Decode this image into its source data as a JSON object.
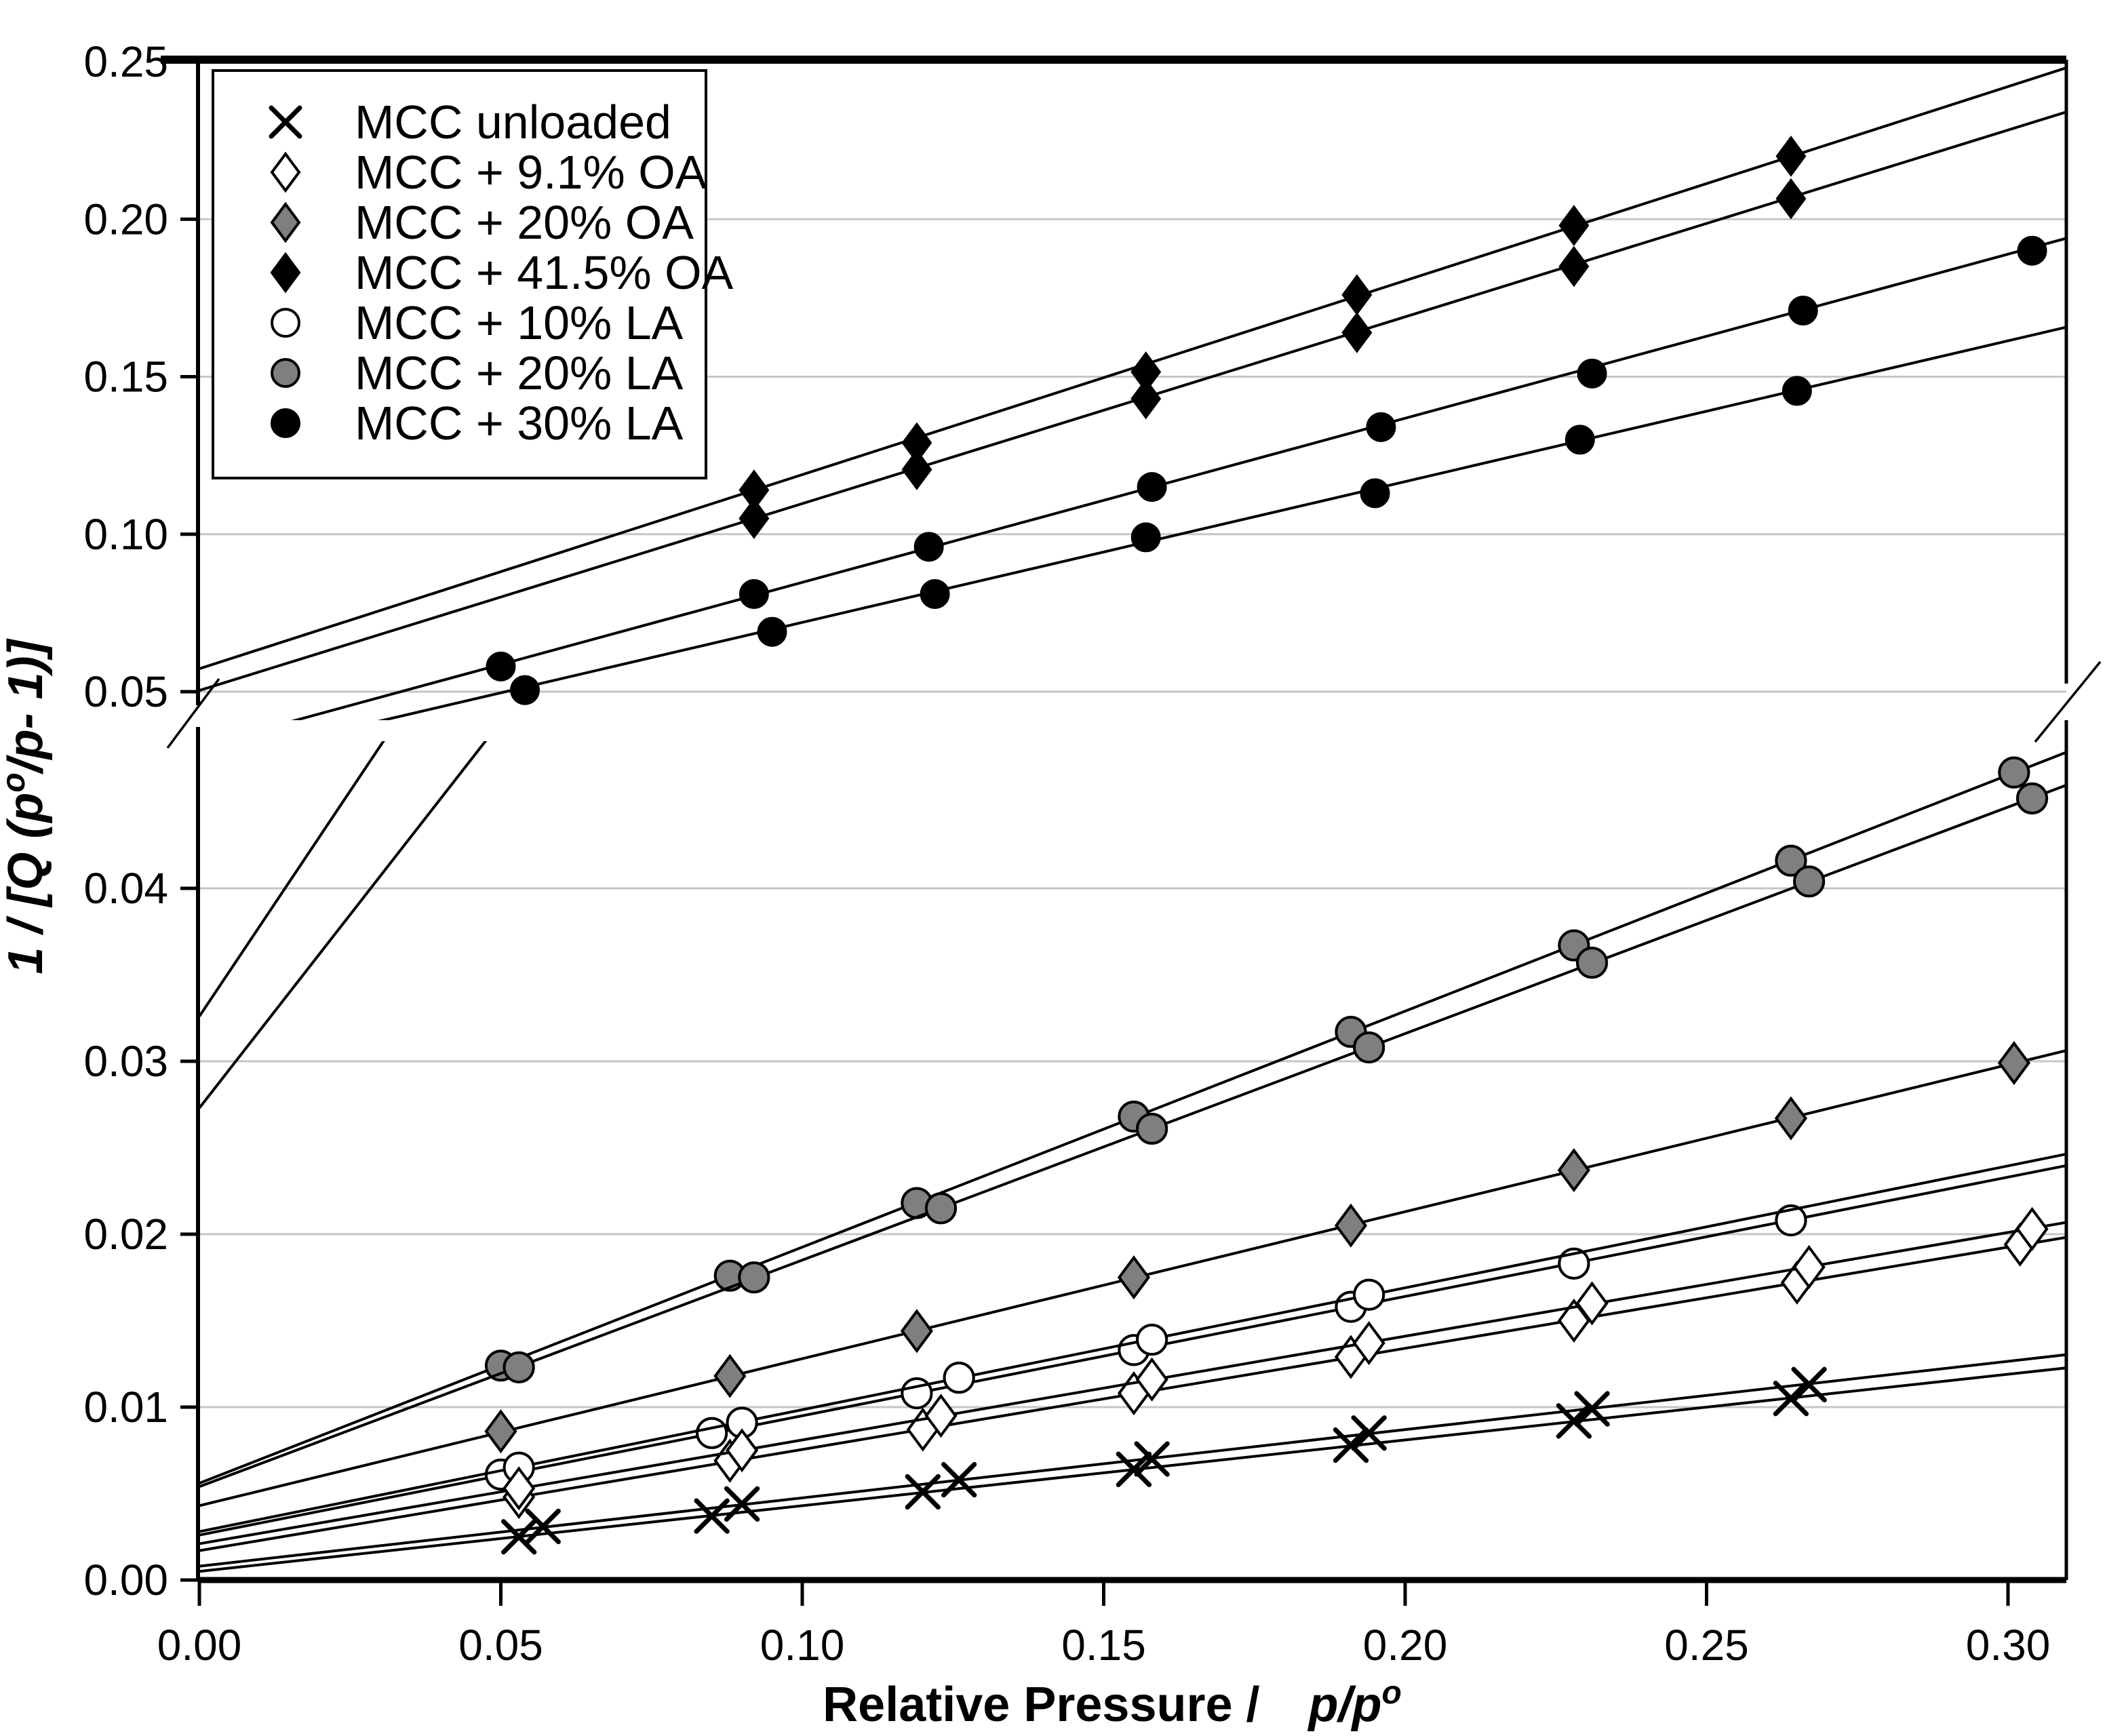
{
  "chart_data": {
    "type": "scatter",
    "description": "BET linearization plot with broken y-axis, two panels sharing one x-axis",
    "colors": {
      "black": "#000000",
      "gray": "#7f7f7f",
      "white": "#ffffff",
      "gridline": "#c6c6c6",
      "background": "#ffffff"
    },
    "x_axis": {
      "title_plain": "Relative Pressure /",
      "title_italic": "p/p",
      "title_superscript": "o",
      "tick_labels": [
        "0.00",
        "0.05",
        "0.10",
        "0.15",
        "0.20",
        "0.25",
        "0.30"
      ],
      "tick_values": [
        0.0,
        0.05,
        0.1,
        0.15,
        0.2,
        0.25,
        0.3
      ],
      "range": [
        0.0,
        0.3097
      ],
      "grid": false
    },
    "y_axis": {
      "title_prefix": "1 / [Q (p",
      "title_superscript": "o",
      "title_suffix": "/p- 1)]",
      "broken": true,
      "top_panel": {
        "tick_labels": [
          "0.05",
          "0.10",
          "0.15",
          "0.20",
          "0.25"
        ],
        "tick_values": [
          0.05,
          0.1,
          0.15,
          0.2,
          0.25
        ],
        "range": [
          0.041,
          0.2513
        ],
        "grid": true
      },
      "bottom_panel": {
        "tick_labels": [
          "0.00",
          "0.01",
          "0.02",
          "0.03",
          "0.04"
        ],
        "tick_values": [
          0.0,
          0.01,
          0.02,
          0.03,
          0.04
        ],
        "range": [
          0.0,
          0.0485
        ],
        "grid": true
      }
    },
    "legend": {
      "position": "top-left",
      "items": [
        {
          "marker": "x-cross",
          "label": "MCC unloaded"
        },
        {
          "marker": "diamond-open",
          "label": "MCC + 9.1% OA"
        },
        {
          "marker": "diamond-gray",
          "label": "MCC + 20% OA"
        },
        {
          "marker": "diamond-black",
          "label": "MCC + 41.5% OA"
        },
        {
          "marker": "circle-open",
          "label": "MCC + 10% LA"
        },
        {
          "marker": "circle-gray",
          "label": "MCC + 20% LA"
        },
        {
          "marker": "circle-black",
          "label": "MCC + 30% LA"
        }
      ]
    },
    "series": [
      {
        "name": "MCC + 41.5% OA",
        "panel": "top",
        "marker": "diamond-black",
        "runs": [
          {
            "x": [
              0.092,
              0.119,
              0.157,
              0.192,
              0.228,
              0.264
            ],
            "y": [
              0.114,
              0.129,
              0.1515,
              0.176,
              0.198,
              0.22
            ],
            "fit_line": {
              "intercept": 0.0573,
              "slope": 0.616
            }
          },
          {
            "x": [
              0.092,
              0.119,
              0.157,
              0.192,
              0.228,
              0.264
            ],
            "y": [
              0.105,
              0.1205,
              0.143,
              0.164,
              0.185,
              0.2065
            ],
            "fit_line": {
              "intercept": 0.0504,
              "slope": 0.593
            }
          }
        ]
      },
      {
        "name": "MCC + 30% LA",
        "panel": "top",
        "marker": "circle-black",
        "runs": [
          {
            "x": [
              0.05,
              0.092,
              0.121,
              0.158,
              0.196,
              0.231,
              0.266,
              0.304
            ],
            "y": [
              0.058,
              0.081,
              0.096,
              0.115,
              0.134,
              0.151,
              0.171,
              0.19
            ],
            "fit_line": {
              "intercept": 0.0326,
              "slope": 0.521
            }
          },
          {
            "x": [
              0.054,
              0.095,
              0.122,
              0.157,
              0.195,
              0.229,
              0.265
            ],
            "y": [
              0.0505,
              0.069,
              0.081,
              0.099,
              0.113,
              0.13,
              0.1455
            ],
            "fit_line": {
              "intercept": 0.0273,
              "slope": 0.447
            }
          }
        ]
      },
      {
        "name": "MCC + 20% LA",
        "panel": "bottom",
        "marker": "circle-gray",
        "runs": [
          {
            "x": [
              0.05,
              0.088,
              0.119,
              0.155,
              0.191,
              0.228,
              0.264,
              0.301
            ],
            "y": [
              0.0124,
              0.0176,
              0.0218,
              0.0268,
              0.0317,
              0.0367,
              0.0416,
              0.0467
            ],
            "fit_line": {
              "intercept": 0.0056,
              "slope": 0.1365
            }
          },
          {
            "x": [
              0.053,
              0.092,
              0.123,
              0.158,
              0.194,
              0.231,
              0.267,
              0.304
            ],
            "y": [
              0.0123,
              0.0175,
              0.0215,
              0.0261,
              0.0308,
              0.0357,
              0.0404,
              0.0452
            ],
            "fit_line": {
              "intercept": 0.0054,
              "slope": 0.131
            }
          }
        ]
      },
      {
        "name": "MCC + 20% OA",
        "panel": "bottom",
        "marker": "diamond-gray",
        "runs": [
          {
            "x": [
              0.05,
              0.088,
              0.119,
              0.155,
              0.191,
              0.228,
              0.264,
              0.301
            ],
            "y": [
              0.0086,
              0.0118,
              0.0144,
              0.0175,
              0.0205,
              0.0237,
              0.0267,
              0.0299
            ],
            "fit_line": {
              "intercept": 0.0043,
              "slope": 0.085
            }
          }
        ]
      },
      {
        "name": "MCC + 10% LA",
        "panel": "bottom",
        "marker": "circle-open",
        "runs": [
          {
            "x": [
              0.05,
              0.085,
              0.119,
              0.155,
              0.191,
              0.228,
              0.264
            ],
            "y": [
              0.0061,
              0.0085,
              0.0108,
              0.0133,
              0.0158,
              0.0183,
              0.0208
            ],
            "fit_line": {
              "intercept": 0.0026,
              "slope": 0.069
            }
          },
          {
            "x": [
              0.053,
              0.09,
              0.126,
              0.158,
              0.194
            ],
            "y": [
              0.0065,
              0.0091,
              0.0117,
              0.0139,
              0.0165
            ],
            "fit_line": {
              "intercept": 0.0028,
              "slope": 0.0705
            }
          }
        ]
      },
      {
        "name": "MCC + 9.1% OA",
        "panel": "bottom",
        "marker": "diamond-open",
        "runs": [
          {
            "x": [
              0.053,
              0.088,
              0.12,
              0.155,
              0.191,
              0.228,
              0.265,
              0.302
            ],
            "y": [
              0.0048,
              0.0069,
              0.0087,
              0.0108,
              0.0129,
              0.015,
              0.0172,
              0.0194
            ],
            "fit_line": {
              "intercept": 0.0017,
              "slope": 0.0585
            }
          },
          {
            "x": [
              0.053,
              0.09,
              0.123,
              0.158,
              0.194,
              0.231,
              0.267,
              0.304
            ],
            "y": [
              0.0053,
              0.0075,
              0.0095,
              0.0116,
              0.0137,
              0.016,
              0.0181,
              0.0203
            ],
            "fit_line": {
              "intercept": 0.0021,
              "slope": 0.06
            }
          }
        ]
      },
      {
        "name": "MCC unloaded",
        "panel": "bottom",
        "marker": "x-cross",
        "runs": [
          {
            "x": [
              0.053,
              0.085,
              0.12,
              0.155,
              0.191,
              0.228,
              0.264
            ],
            "y": [
              0.0025,
              0.0037,
              0.0051,
              0.0064,
              0.0078,
              0.0092,
              0.0105
            ],
            "fit_line": {
              "intercept": 0.0005,
              "slope": 0.038
            }
          },
          {
            "x": [
              0.057,
              0.09,
              0.126,
              0.158,
              0.194,
              0.231,
              0.267
            ],
            "y": [
              0.0031,
              0.0044,
              0.0058,
              0.007,
              0.0085,
              0.0099,
              0.0113
            ],
            "fit_line": {
              "intercept": 0.0008,
              "slope": 0.0395
            }
          }
        ]
      }
    ]
  }
}
